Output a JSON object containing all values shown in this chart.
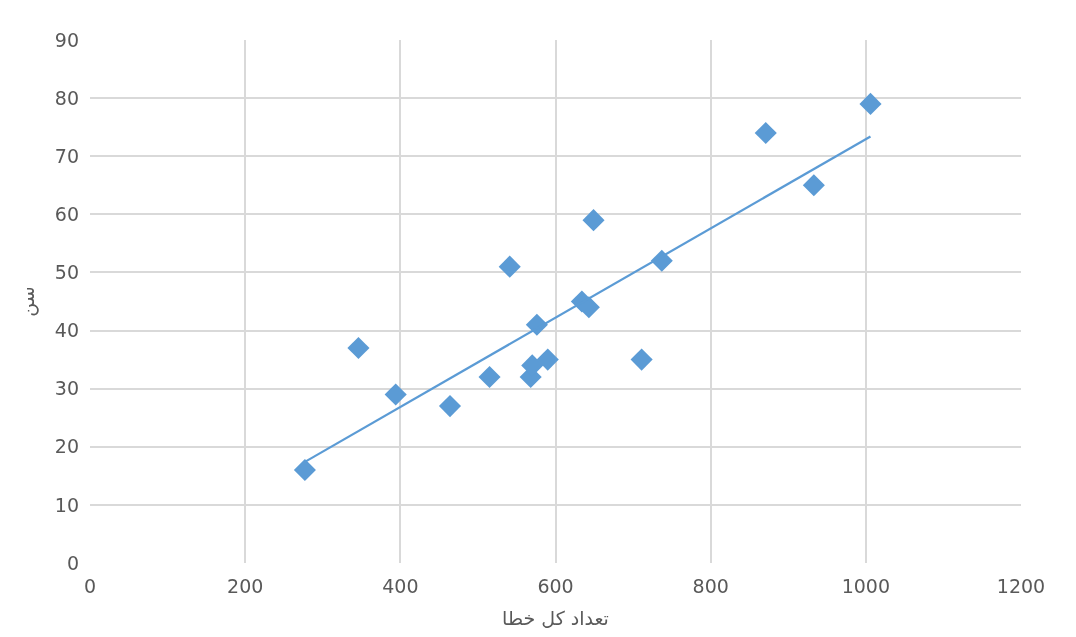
{
  "chart_data": {
    "type": "scatter",
    "xlabel": "تعداد کل خطا",
    "ylabel": "سن",
    "series": [
      {
        "color": "#5b9bd5",
        "marker": "diamond",
        "x": [
          277,
          346,
          394,
          464,
          515,
          541,
          568,
          570,
          576,
          590,
          634,
          643,
          649,
          711,
          737,
          871,
          933,
          1006
        ],
        "values": [
          16,
          37,
          29,
          27,
          32,
          51,
          32,
          34,
          41,
          35,
          45,
          44,
          59,
          35,
          52,
          74,
          65,
          79
        ]
      },
      {
        "type": "line",
        "color": "#5b9bd5",
        "marker": "none",
        "x": [
          277,
          1006
        ],
        "values": [
          17.4,
          73.4
        ]
      }
    ],
    "xlim": [
      0,
      1200
    ],
    "xticks": [
      0,
      200,
      400,
      600,
      800,
      1000,
      1200
    ],
    "ylim": [
      0,
      90
    ],
    "yticks": [
      0,
      10,
      20,
      30,
      40,
      50,
      60,
      70,
      80,
      90
    ],
    "grid": true,
    "legend": false
  }
}
